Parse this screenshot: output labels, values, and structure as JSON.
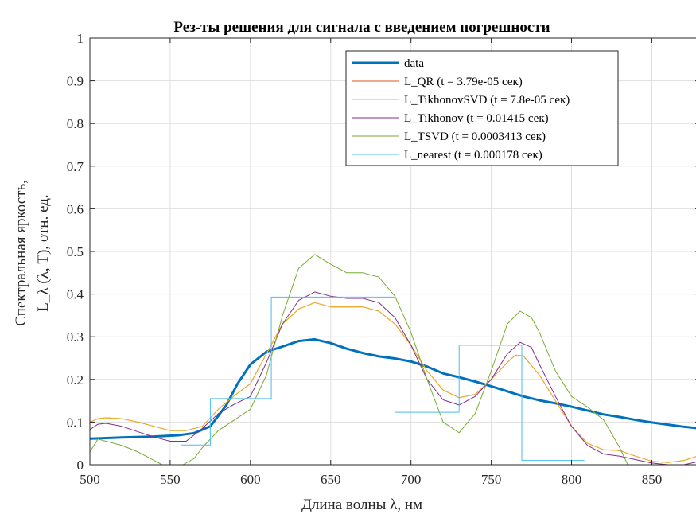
{
  "chart_data": {
    "type": "line",
    "title": "Рез-ты решения для сигнала с введением погрешности",
    "xlabel": "Длина волны λ, нм",
    "ylabel_line1": "Спектральная яркость,",
    "ylabel_line2": "L_λ (λ, T), отн. ед.",
    "xlim": [
      500,
      880
    ],
    "ylim": [
      0,
      1
    ],
    "xticks": [
      500,
      550,
      600,
      650,
      700,
      750,
      800,
      850
    ],
    "yticks": [
      0,
      0.1,
      0.2,
      0.3,
      0.4,
      0.5,
      0.6,
      0.7,
      0.8,
      0.9,
      1
    ],
    "ytick_labels": [
      "0",
      "0.1",
      "0.2",
      "0.3",
      "0.4",
      "0.5",
      "0.6",
      "0.7",
      "0.8",
      "0.9",
      "1"
    ],
    "grid": true,
    "legend_position": "top-right",
    "series": [
      {
        "name": "data",
        "color": "#0072BD",
        "width": 3,
        "points": [
          [
            500,
            0.061
          ],
          [
            520,
            0.064
          ],
          [
            540,
            0.066
          ],
          [
            555,
            0.069
          ],
          [
            565,
            0.074
          ],
          [
            575,
            0.09
          ],
          [
            585,
            0.14
          ],
          [
            592,
            0.19
          ],
          [
            600,
            0.235
          ],
          [
            610,
            0.265
          ],
          [
            620,
            0.277
          ],
          [
            630,
            0.29
          ],
          [
            640,
            0.294
          ],
          [
            650,
            0.285
          ],
          [
            660,
            0.272
          ],
          [
            670,
            0.262
          ],
          [
            680,
            0.254
          ],
          [
            690,
            0.249
          ],
          [
            700,
            0.242
          ],
          [
            710,
            0.23
          ],
          [
            720,
            0.214
          ],
          [
            730,
            0.205
          ],
          [
            740,
            0.195
          ],
          [
            750,
            0.184
          ],
          [
            760,
            0.172
          ],
          [
            770,
            0.16
          ],
          [
            780,
            0.151
          ],
          [
            790,
            0.144
          ],
          [
            800,
            0.136
          ],
          [
            810,
            0.127
          ],
          [
            820,
            0.118
          ],
          [
            830,
            0.112
          ],
          [
            840,
            0.105
          ],
          [
            850,
            0.099
          ],
          [
            860,
            0.094
          ],
          [
            870,
            0.089
          ],
          [
            880,
            0.085
          ]
        ]
      },
      {
        "name": "L_QR (t = 3.79e-05 сек)",
        "color": "#D95319",
        "width": 1,
        "points": [
          [
            500,
            0.1
          ],
          [
            505,
            0.108
          ],
          [
            510,
            0.11
          ],
          [
            520,
            0.108
          ],
          [
            530,
            0.1
          ],
          [
            540,
            0.09
          ],
          [
            550,
            0.08
          ],
          [
            560,
            0.08
          ],
          [
            570,
            0.09
          ],
          [
            580,
            0.13
          ],
          [
            590,
            0.162
          ],
          [
            600,
            0.19
          ],
          [
            610,
            0.26
          ],
          [
            620,
            0.33
          ],
          [
            630,
            0.365
          ],
          [
            640,
            0.38
          ],
          [
            650,
            0.37
          ],
          [
            660,
            0.37
          ],
          [
            670,
            0.37
          ],
          [
            680,
            0.36
          ],
          [
            690,
            0.33
          ],
          [
            700,
            0.28
          ],
          [
            710,
            0.22
          ],
          [
            720,
            0.175
          ],
          [
            730,
            0.157
          ],
          [
            740,
            0.165
          ],
          [
            750,
            0.2
          ],
          [
            760,
            0.24
          ],
          [
            765,
            0.257
          ],
          [
            770,
            0.255
          ],
          [
            780,
            0.21
          ],
          [
            790,
            0.15
          ],
          [
            800,
            0.09
          ],
          [
            810,
            0.05
          ],
          [
            820,
            0.035
          ],
          [
            830,
            0.033
          ],
          [
            840,
            0.02
          ],
          [
            850,
            0.008
          ],
          [
            860,
            0.005
          ],
          [
            870,
            0.01
          ],
          [
            880,
            0.022
          ]
        ]
      },
      {
        "name": "L_TikhonovSVD (t = 7.8e-05 сек)",
        "color": "#EDB120",
        "width": 1,
        "points": [
          [
            500,
            0.1
          ],
          [
            505,
            0.108
          ],
          [
            510,
            0.11
          ],
          [
            520,
            0.108
          ],
          [
            530,
            0.1
          ],
          [
            540,
            0.09
          ],
          [
            550,
            0.08
          ],
          [
            560,
            0.08
          ],
          [
            570,
            0.09
          ],
          [
            580,
            0.13
          ],
          [
            590,
            0.162
          ],
          [
            600,
            0.19
          ],
          [
            610,
            0.26
          ],
          [
            620,
            0.33
          ],
          [
            630,
            0.365
          ],
          [
            640,
            0.38
          ],
          [
            650,
            0.37
          ],
          [
            660,
            0.37
          ],
          [
            670,
            0.37
          ],
          [
            680,
            0.36
          ],
          [
            690,
            0.33
          ],
          [
            700,
            0.28
          ],
          [
            710,
            0.22
          ],
          [
            720,
            0.175
          ],
          [
            730,
            0.157
          ],
          [
            740,
            0.165
          ],
          [
            750,
            0.2
          ],
          [
            760,
            0.24
          ],
          [
            765,
            0.257
          ],
          [
            770,
            0.255
          ],
          [
            780,
            0.21
          ],
          [
            790,
            0.15
          ],
          [
            800,
            0.09
          ],
          [
            810,
            0.05
          ],
          [
            820,
            0.035
          ],
          [
            830,
            0.033
          ],
          [
            840,
            0.02
          ],
          [
            850,
            0.008
          ],
          [
            860,
            0.005
          ],
          [
            870,
            0.01
          ],
          [
            880,
            0.022
          ]
        ]
      },
      {
        "name": "L_Tikhonov (t = 0.01415 сек)",
        "color": "#7E2F8E",
        "width": 1,
        "points": [
          [
            500,
            0.082
          ],
          [
            505,
            0.095
          ],
          [
            510,
            0.097
          ],
          [
            520,
            0.09
          ],
          [
            530,
            0.077
          ],
          [
            540,
            0.065
          ],
          [
            550,
            0.055
          ],
          [
            560,
            0.055
          ],
          [
            570,
            0.085
          ],
          [
            580,
            0.12
          ],
          [
            590,
            0.142
          ],
          [
            600,
            0.16
          ],
          [
            610,
            0.24
          ],
          [
            620,
            0.33
          ],
          [
            630,
            0.385
          ],
          [
            640,
            0.405
          ],
          [
            650,
            0.395
          ],
          [
            660,
            0.39
          ],
          [
            670,
            0.39
          ],
          [
            680,
            0.38
          ],
          [
            690,
            0.345
          ],
          [
            700,
            0.28
          ],
          [
            710,
            0.2
          ],
          [
            720,
            0.152
          ],
          [
            730,
            0.14
          ],
          [
            740,
            0.16
          ],
          [
            750,
            0.2
          ],
          [
            760,
            0.26
          ],
          [
            768,
            0.287
          ],
          [
            775,
            0.275
          ],
          [
            780,
            0.235
          ],
          [
            790,
            0.16
          ],
          [
            800,
            0.09
          ],
          [
            810,
            0.045
          ],
          [
            820,
            0.025
          ],
          [
            830,
            0.02
          ],
          [
            840,
            0.012
          ],
          [
            850,
            0.004
          ],
          [
            860,
            0.0
          ],
          [
            870,
            0.0
          ],
          [
            880,
            0.008
          ]
        ]
      },
      {
        "name": "L_TSVD (t = 0.0003413 сек)",
        "color": "#77AC30",
        "width": 1,
        "points": [
          [
            500,
            0.03
          ],
          [
            505,
            0.06
          ],
          [
            510,
            0.055
          ],
          [
            520,
            0.045
          ],
          [
            530,
            0.03
          ],
          [
            540,
            0.01
          ],
          [
            545,
            0.0
          ],
          [
            558,
            0.0
          ],
          [
            565,
            0.015
          ],
          [
            570,
            0.04
          ],
          [
            580,
            0.08
          ],
          [
            590,
            0.105
          ],
          [
            600,
            0.13
          ],
          [
            610,
            0.21
          ],
          [
            620,
            0.35
          ],
          [
            630,
            0.46
          ],
          [
            640,
            0.493
          ],
          [
            650,
            0.47
          ],
          [
            660,
            0.45
          ],
          [
            670,
            0.45
          ],
          [
            680,
            0.44
          ],
          [
            690,
            0.395
          ],
          [
            700,
            0.31
          ],
          [
            710,
            0.2
          ],
          [
            720,
            0.1
          ],
          [
            730,
            0.075
          ],
          [
            740,
            0.12
          ],
          [
            750,
            0.22
          ],
          [
            760,
            0.33
          ],
          [
            768,
            0.36
          ],
          [
            775,
            0.345
          ],
          [
            780,
            0.31
          ],
          [
            790,
            0.22
          ],
          [
            800,
            0.16
          ],
          [
            810,
            0.135
          ],
          [
            820,
            0.105
          ],
          [
            830,
            0.04
          ],
          [
            835,
            0.0
          ]
        ]
      },
      {
        "name": "L_nearest (t = 0.000178 сек)",
        "color": "#4DBEEE",
        "width": 1,
        "points": [
          [
            557,
            0.046
          ],
          [
            575,
            0.046
          ],
          [
            575,
            0.155
          ],
          [
            613,
            0.155
          ],
          [
            613,
            0.393
          ],
          [
            690,
            0.393
          ],
          [
            690,
            0.123
          ],
          [
            730,
            0.123
          ],
          [
            730,
            0.28
          ],
          [
            769,
            0.28
          ],
          [
            769,
            0.01
          ],
          [
            808,
            0.01
          ]
        ]
      }
    ]
  }
}
